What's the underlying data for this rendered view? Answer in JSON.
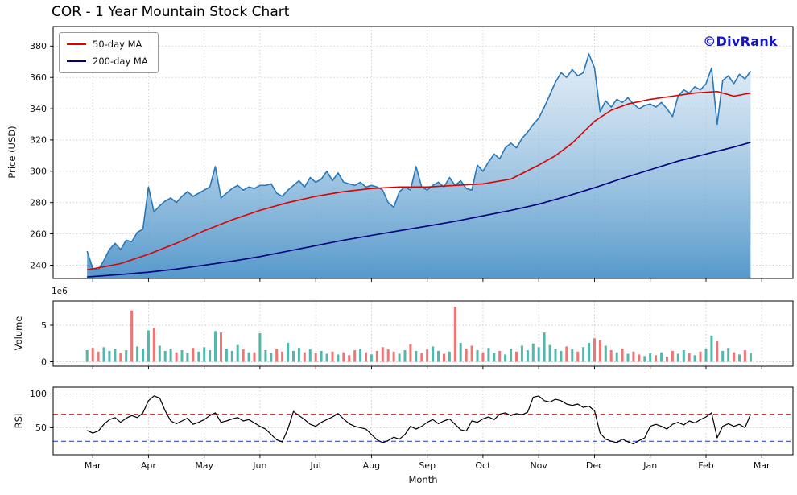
{
  "title": "COR - 1 Year Mountain Stock Chart",
  "watermark": "©DivRank",
  "legend": [
    {
      "label": "50-day MA",
      "color": "#dc0000"
    },
    {
      "label": "200-day MA",
      "color": "#00007f"
    }
  ],
  "chart_data": {
    "type": "line",
    "title": "COR - 1 Year Mountain Stock Chart",
    "xlabel": "Month",
    "xlim": [
      -0.71,
      12.56
    ],
    "x_ticks": [
      0,
      1,
      2,
      3,
      4,
      5,
      6,
      7,
      8,
      9,
      10,
      11,
      12
    ],
    "x_tick_labels": [
      "Mar",
      "Apr",
      "May",
      "Jun",
      "Jul",
      "Aug",
      "Sep",
      "Oct",
      "Nov",
      "Dec",
      "Jan",
      "Feb",
      "Mar"
    ],
    "x_start": -0.1,
    "x_step": 0.1,
    "grid": true,
    "panels": {
      "price": {
        "ylabel": "Price (USD)",
        "ylim": [
          231.5,
          392.5
        ],
        "yticks": [
          240,
          260,
          280,
          300,
          320,
          340,
          360,
          380
        ],
        "line_color": "#2878b8",
        "fill_top": "#ddeaf6",
        "fill_bottom": "#4d93c8",
        "price": [
          249,
          238,
          237,
          243,
          250,
          254,
          250,
          256,
          255,
          261,
          263,
          290,
          274,
          278,
          281,
          283,
          280,
          284,
          287,
          284,
          286,
          288,
          290,
          303,
          283,
          286,
          289,
          291,
          288,
          290,
          289,
          291,
          291,
          292,
          286,
          284,
          288,
          291,
          294,
          290,
          296,
          293,
          295,
          300,
          294,
          299,
          293,
          292,
          291,
          293,
          290,
          291,
          290,
          288,
          280,
          277,
          287,
          290,
          288,
          303,
          290,
          288,
          291,
          293,
          290,
          296,
          291,
          294,
          289,
          288,
          304,
          300,
          306,
          311,
          308,
          315,
          318,
          315,
          321,
          325,
          330,
          334,
          341,
          349,
          357,
          363,
          360,
          365,
          361,
          363,
          375,
          366,
          338,
          345,
          341,
          346,
          344,
          347,
          343,
          340,
          342,
          343,
          341,
          344,
          340,
          335,
          348,
          352,
          350,
          354,
          352,
          356,
          366,
          330,
          358,
          361,
          356,
          362,
          359,
          364
        ],
        "ma50": {
          "name": "50-day MA",
          "color": "#dc0000",
          "x": [
            -0.1,
            0.5,
            1.0,
            1.5,
            2.0,
            2.5,
            3.0,
            3.5,
            4.0,
            4.5,
            5.0,
            5.5,
            6.0,
            6.5,
            7.0,
            7.5,
            8.0,
            8.3,
            8.6,
            9.0,
            9.3,
            9.6,
            10.0,
            10.4,
            10.8,
            11.2,
            11.5,
            11.8
          ],
          "values": [
            237,
            241,
            247,
            254,
            262,
            269,
            275,
            280,
            284,
            287,
            289,
            290,
            290,
            291,
            292,
            295,
            304,
            310,
            318,
            332,
            339,
            343,
            346,
            348,
            350,
            351,
            348,
            350
          ]
        },
        "ma200": {
          "name": "200-day MA",
          "color": "#00007f",
          "x": [
            -0.1,
            0.5,
            1.0,
            1.5,
            2.0,
            2.5,
            3.0,
            3.5,
            4.0,
            4.5,
            5.0,
            5.5,
            6.0,
            6.5,
            7.0,
            7.5,
            8.0,
            8.5,
            9.0,
            9.5,
            10.0,
            10.5,
            11.0,
            11.5,
            11.8
          ],
          "values": [
            232.5,
            234,
            235.5,
            237.5,
            240,
            242.5,
            245.5,
            249,
            252.5,
            256,
            259,
            262,
            265,
            268,
            271.5,
            275,
            279,
            284,
            289.5,
            295.5,
            301,
            306.5,
            311,
            315.5,
            318.5
          ]
        }
      },
      "volume": {
        "ylabel": "Volume",
        "offset_text": "1e6",
        "ylim": [
          -0.6,
          8.3
        ],
        "yticks": [
          0,
          5
        ],
        "up_color": "#26a69a",
        "down_color": "#ef5350",
        "values": [
          1.6,
          1.9,
          1.4,
          2.0,
          1.5,
          1.8,
          1.2,
          1.6,
          7.0,
          2.1,
          1.8,
          4.3,
          4.6,
          2.2,
          1.5,
          1.8,
          1.3,
          1.6,
          1.2,
          1.9,
          1.4,
          2.0,
          1.6,
          4.2,
          4.0,
          1.8,
          1.5,
          2.3,
          1.7,
          1.3,
          1.3,
          3.9,
          1.6,
          1.2,
          1.8,
          1.4,
          2.6,
          1.5,
          1.9,
          1.3,
          1.7,
          1.2,
          1.5,
          1.1,
          1.4,
          1.0,
          1.3,
          0.9,
          1.6,
          1.8,
          1.3,
          1.0,
          1.5,
          2.0,
          1.7,
          1.4,
          1.1,
          1.6,
          2.4,
          1.5,
          1.2,
          1.7,
          2.1,
          1.5,
          1.1,
          1.4,
          7.5,
          2.6,
          1.8,
          2.2,
          1.6,
          1.3,
          1.9,
          1.2,
          1.5,
          1.0,
          1.8,
          1.4,
          2.2,
          1.6,
          2.5,
          2.0,
          4.0,
          2.3,
          1.8,
          1.5,
          2.1,
          1.7,
          1.4,
          2.0,
          2.6,
          3.2,
          2.9,
          2.2,
          1.6,
          1.3,
          1.8,
          1.1,
          1.4,
          1.0,
          0.8,
          1.2,
          0.9,
          1.3,
          0.7,
          1.5,
          1.1,
          1.6,
          1.2,
          0.9,
          1.4,
          1.8,
          3.6,
          2.8,
          1.5,
          1.9,
          1.3,
          1.0,
          1.6,
          1.2
        ]
      },
      "rsi": {
        "ylabel": "RSI",
        "ylim": [
          10,
          110
        ],
        "yticks": [
          50,
          100
        ],
        "line_color": "#000000",
        "overbought": 70,
        "oversold": 30,
        "overbought_color": "#cc2222",
        "oversold_color": "#2233cc",
        "values": [
          46,
          42,
          45,
          55,
          62,
          65,
          58,
          64,
          68,
          65,
          72,
          90,
          97,
          94,
          75,
          60,
          56,
          60,
          64,
          55,
          58,
          62,
          68,
          72,
          58,
          60,
          63,
          65,
          60,
          62,
          57,
          52,
          48,
          40,
          32,
          29,
          48,
          74,
          68,
          62,
          55,
          52,
          58,
          62,
          66,
          71,
          63,
          56,
          52,
          50,
          48,
          40,
          32,
          28,
          31,
          36,
          33,
          40,
          52,
          48,
          52,
          58,
          62,
          56,
          60,
          63,
          55,
          47,
          45,
          60,
          58,
          63,
          66,
          62,
          70,
          72,
          68,
          71,
          69,
          73,
          95,
          97,
          90,
          88,
          92,
          90,
          85,
          83,
          85,
          80,
          82,
          75,
          42,
          33,
          30,
          28,
          33,
          29,
          26,
          31,
          35,
          52,
          55,
          52,
          48,
          55,
          58,
          54,
          60,
          57,
          62,
          66,
          72,
          35,
          52,
          56,
          52,
          55,
          50,
          70
        ]
      }
    }
  }
}
